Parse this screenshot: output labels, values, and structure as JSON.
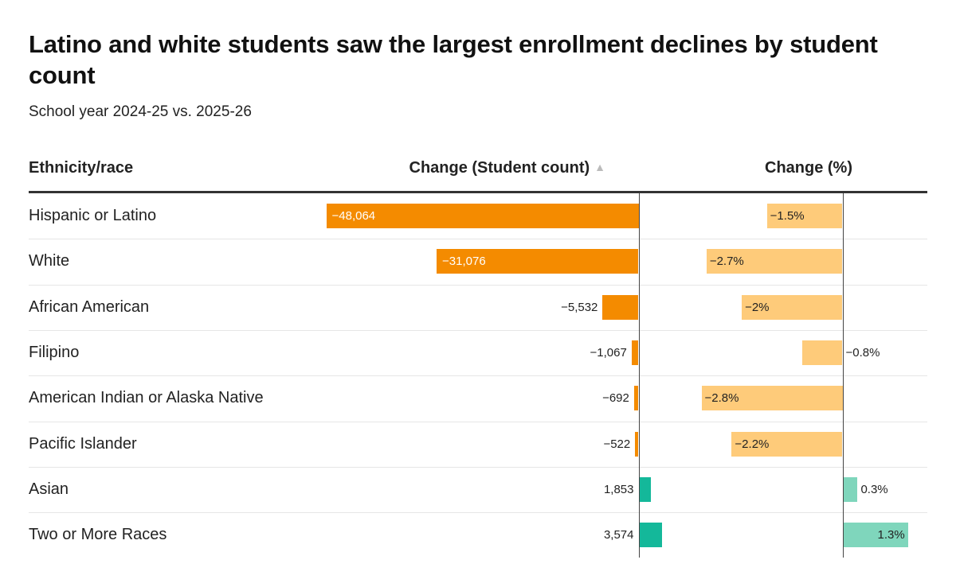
{
  "title": "Latino and white students saw the largest enrollment declines by student count",
  "subtitle": "School year 2024-25 vs. 2025-26",
  "columns": {
    "ethnicity": "Ethnicity/race",
    "count": "Change (Student count)",
    "pct": "Change (%)"
  },
  "sort_icon": "sort-ascending-icon",
  "colors": {
    "count_negative": "#f48b00",
    "count_positive": "#14b89a",
    "pct_negative": "#fecb7a",
    "pct_positive": "#7fd6bc",
    "axis": "#444444"
  },
  "chart_data": {
    "type": "table",
    "columns": [
      "Ethnicity/race",
      "Change (Student count)",
      "Change (%)"
    ],
    "rows": [
      {
        "group": "Hispanic or Latino",
        "count": -48064,
        "count_label": "−48,064",
        "pct": -1.5,
        "pct_label": "−1.5%"
      },
      {
        "group": "White",
        "count": -31076,
        "count_label": "−31,076",
        "pct": -2.7,
        "pct_label": "−2.7%"
      },
      {
        "group": "African American",
        "count": -5532,
        "count_label": "−5,532",
        "pct": -2.0,
        "pct_label": "−2%"
      },
      {
        "group": "Filipino",
        "count": -1067,
        "count_label": "−1,067",
        "pct": -0.8,
        "pct_label": "−0.8%"
      },
      {
        "group": "American Indian or Alaska Native",
        "count": -692,
        "count_label": "−692",
        "pct": -2.8,
        "pct_label": "−2.8%"
      },
      {
        "group": "Pacific Islander",
        "count": -522,
        "count_label": "−522",
        "pct": -2.2,
        "pct_label": "−2.2%"
      },
      {
        "group": "Asian",
        "count": 1853,
        "count_label": "1,853",
        "pct": 0.3,
        "pct_label": "0.3%"
      },
      {
        "group": "Two or More Races",
        "count": 3574,
        "count_label": "3,574",
        "pct": 1.3,
        "pct_label": "1.3%"
      }
    ]
  }
}
